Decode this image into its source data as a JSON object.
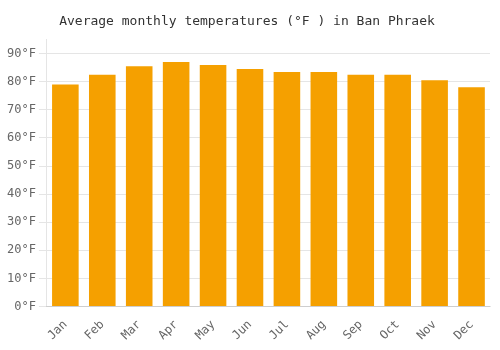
{
  "chart_data": {
    "type": "bar",
    "title": "Average monthly temperatures (°F ) in Ban Phraek",
    "categories": [
      "Jan",
      "Feb",
      "Mar",
      "Apr",
      "May",
      "Jun",
      "Jul",
      "Aug",
      "Sep",
      "Oct",
      "Nov",
      "Dec"
    ],
    "values": [
      79,
      82.5,
      85.5,
      87,
      86,
      84.5,
      83.5,
      83.5,
      82.5,
      82.5,
      80.5,
      78
    ],
    "color": "#F5A000",
    "ylim": [
      0,
      95
    ],
    "yticks": [
      {
        "value": 0,
        "label": "0°F"
      },
      {
        "value": 10,
        "label": "10°F"
      },
      {
        "value": 20,
        "label": "20°F"
      },
      {
        "value": 30,
        "label": "30°F"
      },
      {
        "value": 40,
        "label": "40°F"
      },
      {
        "value": 50,
        "label": "50°F"
      },
      {
        "value": 60,
        "label": "60°F"
      },
      {
        "value": 70,
        "label": "70°F"
      },
      {
        "value": 80,
        "label": "80°F"
      },
      {
        "value": 90,
        "label": "90°F"
      }
    ],
    "grid": true
  }
}
